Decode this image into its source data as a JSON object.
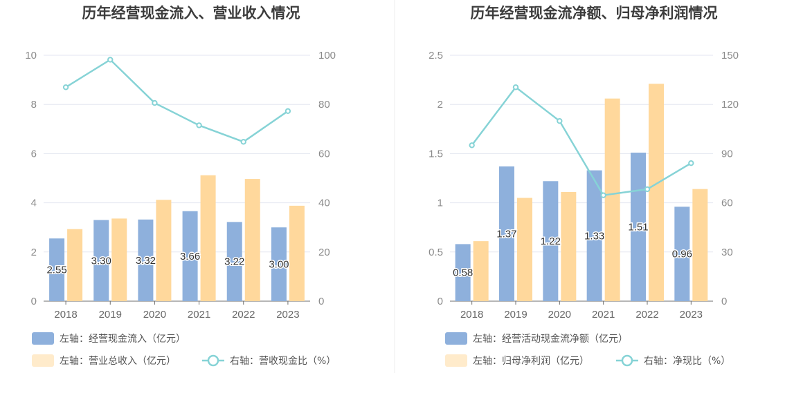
{
  "colors": {
    "bar_left": "#8eb0dc",
    "bar_right": "#ffd89c",
    "line": "#86d3d6",
    "grid": "#e3e6f0",
    "axis": "#6e6e6e"
  },
  "chart_data": [
    {
      "type": "bar",
      "title": "历年经营现金流入、营业收入情况",
      "categories": [
        "2018",
        "2019",
        "2020",
        "2021",
        "2022",
        "2023"
      ],
      "left_axis": {
        "min": 0,
        "max": 10,
        "ticks": [
          "0",
          "2",
          "4",
          "6",
          "8",
          "10"
        ]
      },
      "right_axis": {
        "min": 0,
        "max": 100,
        "ticks": [
          "0",
          "20",
          "40",
          "60",
          "80",
          "100"
        ]
      },
      "series": [
        {
          "name": "左轴：经营现金流入（亿元）",
          "kind": "bar",
          "axis": "left",
          "values": [
            2.55,
            3.3,
            3.32,
            3.66,
            3.22,
            3.0
          ],
          "labels": [
            "2.55",
            "3.30",
            "3.32",
            "3.66",
            "3.22",
            "3.00"
          ]
        },
        {
          "name": "左轴：营业总收入（亿元）",
          "kind": "bar",
          "axis": "left",
          "values": [
            2.93,
            3.36,
            4.12,
            5.12,
            4.97,
            3.88
          ]
        },
        {
          "name": "右轴：营收现金比（%）",
          "kind": "line",
          "axis": "right",
          "values": [
            87.0,
            98.2,
            80.6,
            71.5,
            64.8,
            77.3
          ]
        }
      ],
      "grid": true,
      "legend_position": "bottom-left"
    },
    {
      "type": "bar",
      "title": "历年经营现金流净额、归母净利润情况",
      "categories": [
        "2018",
        "2019",
        "2020",
        "2021",
        "2022",
        "2023"
      ],
      "left_axis": {
        "min": 0,
        "max": 2.5,
        "ticks": [
          "0",
          "0.5",
          "1",
          "1.5",
          "2",
          "2.5"
        ]
      },
      "right_axis": {
        "min": 0,
        "max": 150,
        "ticks": [
          "0",
          "30",
          "60",
          "90",
          "120",
          "150"
        ]
      },
      "series": [
        {
          "name": "左轴：经营活动现金流净额（亿元）",
          "kind": "bar",
          "axis": "left",
          "values": [
            0.58,
            1.37,
            1.22,
            1.33,
            1.51,
            0.96
          ],
          "labels": [
            "0.58",
            "1.37",
            "1.22",
            "1.33",
            "1.51",
            "0.96"
          ]
        },
        {
          "name": "左轴：归母净利润（亿元）",
          "kind": "bar",
          "axis": "left",
          "values": [
            0.61,
            1.05,
            1.11,
            2.06,
            2.21,
            1.14
          ]
        },
        {
          "name": "右轴：净现比（%）",
          "kind": "line",
          "axis": "right",
          "values": [
            95.1,
            130.5,
            109.9,
            64.6,
            68.3,
            84.2
          ]
        }
      ],
      "grid": true,
      "legend_position": "bottom-left"
    }
  ]
}
